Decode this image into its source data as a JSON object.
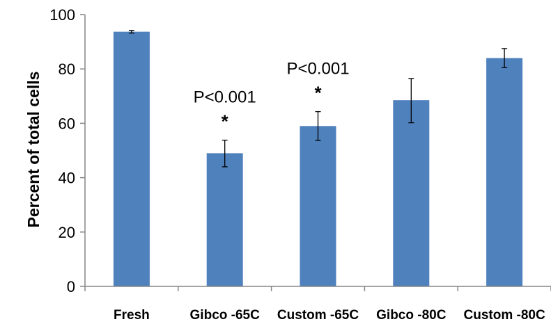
{
  "chart_data": {
    "type": "bar",
    "categories": [
      "Fresh",
      "Gibco -65C",
      "Custom -65C",
      "Gibco -80C",
      "Custom -80C"
    ],
    "values": [
      93.7,
      49.0,
      59.0,
      68.5,
      84.0
    ],
    "error_low": [
      93.2,
      44.0,
      53.7,
      60.2,
      80.5
    ],
    "error_high": [
      94.2,
      53.8,
      64.3,
      76.5,
      87.5
    ],
    "ylabel": "Percent of  total cells",
    "ylim": [
      0,
      100
    ],
    "yticks": [
      "0",
      "20",
      "40",
      "60",
      "80",
      "100"
    ],
    "ytick_values": [
      0,
      20,
      40,
      60,
      80,
      100
    ],
    "bar_color": "#4f81bd",
    "grid": false,
    "annotations": [
      {
        "category_index": 1,
        "text": "P<0.001",
        "marker": "*"
      },
      {
        "category_index": 2,
        "text": "P<0.001",
        "marker": "*"
      }
    ]
  }
}
